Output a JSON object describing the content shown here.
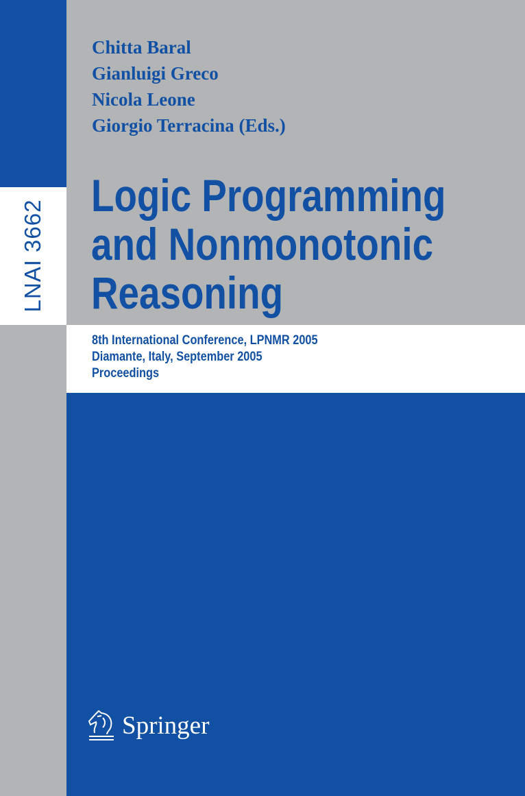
{
  "series": "LNAI 3662",
  "authors": [
    "Chitta Baral",
    "Gianluigi Greco",
    "Nicola Leone",
    "Giorgio Terracina  (Eds.)"
  ],
  "title": [
    "Logic Programming",
    "and Nonmonotonic",
    "Reasoning"
  ],
  "subtitle": [
    "8th International Conference, LPNMR 2005",
    "Diamante, Italy, September 2005",
    "Proceedings"
  ],
  "publisher": {
    "name": "Springer",
    "logo_icon": "knight-horse-icon"
  },
  "colors": {
    "blue": "#1150a3",
    "gray": "#b3b4b6",
    "white": "#ffffff"
  }
}
